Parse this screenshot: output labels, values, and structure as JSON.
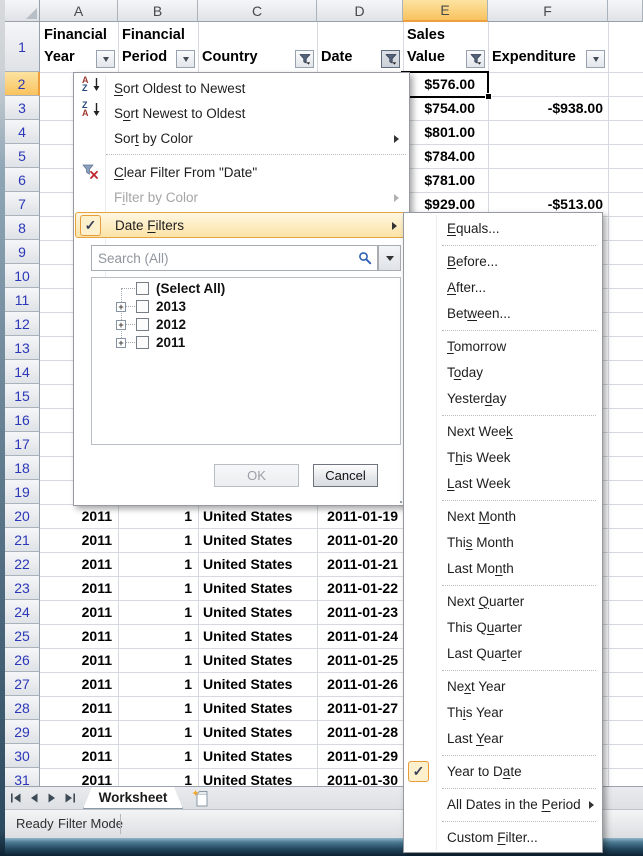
{
  "sheet": {
    "column_letters": [
      "A",
      "B",
      "C",
      "D",
      "E",
      "F"
    ],
    "row_count": 31,
    "selected_cell": "E2",
    "header_row": [
      {
        "col": "A",
        "lines": [
          "Financial",
          "Year"
        ],
        "filter_button": "dropdown"
      },
      {
        "col": "B",
        "lines": [
          "Financial",
          "Period"
        ],
        "filter_button": "dropdown"
      },
      {
        "col": "C",
        "lines": [
          "Country"
        ],
        "filter_button": "funnel"
      },
      {
        "col": "D",
        "lines": [
          "Date"
        ],
        "filter_button": "funnel",
        "pressed": true
      },
      {
        "col": "E",
        "lines": [
          "Sales",
          "Value"
        ],
        "filter_button": "funnel"
      },
      {
        "col": "F",
        "lines": [
          "Expenditure"
        ],
        "filter_button": "dropdown"
      }
    ],
    "cells": [
      {
        "ref": "E2",
        "col": "E",
        "row": 2,
        "value": "$576.00"
      },
      {
        "ref": "E3",
        "col": "E",
        "row": 3,
        "value": "$754.00"
      },
      {
        "ref": "F3",
        "col": "F",
        "row": 3,
        "value": "-$938.00"
      },
      {
        "ref": "E4",
        "col": "E",
        "row": 4,
        "value": "$801.00"
      },
      {
        "ref": "E5",
        "col": "E",
        "row": 5,
        "value": "$784.00"
      },
      {
        "ref": "E6",
        "col": "E",
        "row": 6,
        "value": "$781.00"
      },
      {
        "ref": "E7",
        "col": "E",
        "row": 7,
        "value": "$929.00"
      },
      {
        "ref": "F7",
        "col": "F",
        "row": 7,
        "value": "-$513.00"
      }
    ],
    "data_rows": [
      {
        "row": 20,
        "financial_year": "2011",
        "financial_period": "1",
        "country": "United States",
        "date": "2011-01-19"
      },
      {
        "row": 21,
        "financial_year": "2011",
        "financial_period": "1",
        "country": "United States",
        "date": "2011-01-20"
      },
      {
        "row": 22,
        "financial_year": "2011",
        "financial_period": "1",
        "country": "United States",
        "date": "2011-01-21"
      },
      {
        "row": 23,
        "financial_year": "2011",
        "financial_period": "1",
        "country": "United States",
        "date": "2011-01-22"
      },
      {
        "row": 24,
        "financial_year": "2011",
        "financial_period": "1",
        "country": "United States",
        "date": "2011-01-23"
      },
      {
        "row": 25,
        "financial_year": "2011",
        "financial_period": "1",
        "country": "United States",
        "date": "2011-01-24"
      },
      {
        "row": 26,
        "financial_year": "2011",
        "financial_period": "1",
        "country": "United States",
        "date": "2011-01-25"
      },
      {
        "row": 27,
        "financial_year": "2011",
        "financial_period": "1",
        "country": "United States",
        "date": "2011-01-26"
      },
      {
        "row": 28,
        "financial_year": "2011",
        "financial_period": "1",
        "country": "United States",
        "date": "2011-01-27"
      },
      {
        "row": 29,
        "financial_year": "2011",
        "financial_period": "1",
        "country": "United States",
        "date": "2011-01-28"
      },
      {
        "row": 30,
        "financial_year": "2011",
        "financial_period": "1",
        "country": "United States",
        "date": "2011-01-29"
      },
      {
        "row": 31,
        "financial_year": "2011",
        "financial_period": "1",
        "country": "United States",
        "date": "2011-01-30"
      }
    ]
  },
  "filter_menu": {
    "items": [
      {
        "label": "Sort Oldest to Newest",
        "underline_index": 0,
        "icon": "sort-az-icon"
      },
      {
        "label": "Sort Newest to Oldest",
        "underline_index": 1,
        "icon": "sort-za-icon"
      },
      {
        "label": "Sort by Color",
        "underline_index": 3,
        "submenu": true
      },
      {
        "separator": true
      },
      {
        "label": "Clear Filter From \"Date\"",
        "underline_index": 0,
        "icon": "clear-filter-icon"
      },
      {
        "label": "Filter by Color",
        "underline_index": 1,
        "submenu": true,
        "disabled": true
      },
      {
        "label": "Date Filters",
        "underline_index": 5,
        "submenu": true,
        "checked": true,
        "highlighted": true
      }
    ],
    "search_placeholder": "Search (All)",
    "tree_items": [
      {
        "label": "(Select All)",
        "expandable": false,
        "checked": false
      },
      {
        "label": "2013",
        "expandable": true,
        "checked": false
      },
      {
        "label": "2012",
        "expandable": true,
        "checked": false
      },
      {
        "label": "2011",
        "expandable": true,
        "checked": false
      }
    ],
    "ok_label": "OK",
    "cancel_label": "Cancel"
  },
  "date_filters_submenu": {
    "items": [
      {
        "label": "Equals...",
        "underline_index": 0
      },
      {
        "separator": true
      },
      {
        "label": "Before...",
        "underline_index": 0
      },
      {
        "label": "After...",
        "underline_index": 0
      },
      {
        "label": "Between...",
        "underline_index": 3
      },
      {
        "separator": true
      },
      {
        "label": "Tomorrow",
        "underline_index": 0
      },
      {
        "label": "Today",
        "underline_index": 1
      },
      {
        "label": "Yesterday",
        "underline_index": 6
      },
      {
        "separator": true
      },
      {
        "label": "Next Week",
        "underline_index": 8
      },
      {
        "label": "This Week",
        "underline_index": 1
      },
      {
        "label": "Last Week",
        "underline_index": 0
      },
      {
        "separator": true
      },
      {
        "label": "Next Month",
        "underline_index": 5
      },
      {
        "label": "This Month",
        "underline_index": 3
      },
      {
        "label": "Last Month",
        "underline_index": 7
      },
      {
        "separator": true
      },
      {
        "label": "Next Quarter",
        "underline_index": 5
      },
      {
        "label": "This Quarter",
        "underline_index": 6
      },
      {
        "label": "Last Quarter",
        "underline_index": 8
      },
      {
        "separator": true
      },
      {
        "label": "Next Year",
        "underline_index": 2
      },
      {
        "label": "This Year",
        "underline_index": 2
      },
      {
        "label": "Last Year",
        "underline_index": 5
      },
      {
        "separator": true
      },
      {
        "label": "Year to Date",
        "underline_index": 9,
        "checked": true
      },
      {
        "separator": true
      },
      {
        "label": "All Dates in the Period",
        "underline_index": 17,
        "submenu": true
      },
      {
        "separator": true
      },
      {
        "label": "Custom Filter...",
        "underline_index": 7
      }
    ]
  },
  "tabs": {
    "worksheet_label": "Worksheet"
  },
  "status_bar": {
    "ready": "Ready",
    "filter_mode": "Filter Mode"
  },
  "colors": {
    "selection_accent": "#ef9e3d",
    "selected_header_fill": "#f9c35f",
    "menu_highlight_border": "#e7a33e",
    "row_number_blue": "#2b37b8"
  }
}
